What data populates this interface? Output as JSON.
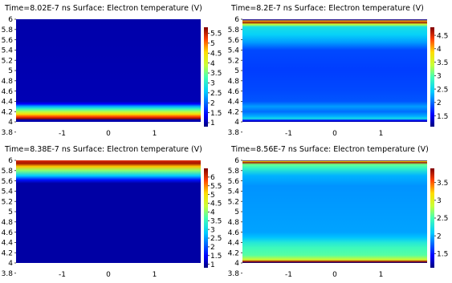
{
  "chart_data": [
    {
      "type": "heatmap",
      "title": "Time=8.02E-7 ns  Surface: Electron temperature (V)",
      "xlim": [
        -2,
        2
      ],
      "ylim": [
        3.8,
        6
      ],
      "xticks": [
        "-1",
        "0",
        "1"
      ],
      "yticks": [
        "3.8",
        "4",
        "4.2",
        "4.4",
        "4.6",
        "4.8",
        "5",
        "5.2",
        "5.4",
        "5.6",
        "5.8",
        "6"
      ],
      "colorbar": {
        "min": 0.8,
        "max": 5.8,
        "ticks": [
          "1",
          "1.5",
          "2",
          "2.5",
          "3",
          "3.5",
          "4",
          "4.5",
          "5",
          "5.5"
        ]
      },
      "profile": [
        {
          "y": 4.0,
          "v": 1.0
        },
        {
          "y": 4.04,
          "v": 1.0
        },
        {
          "y": 4.06,
          "v": 5.7
        },
        {
          "y": 4.1,
          "v": 5.2
        },
        {
          "y": 4.15,
          "v": 4.5
        },
        {
          "y": 4.2,
          "v": 3.8
        },
        {
          "y": 4.25,
          "v": 3.2
        },
        {
          "y": 4.3,
          "v": 2.4
        },
        {
          "y": 4.35,
          "v": 1.4
        },
        {
          "y": 4.4,
          "v": 1.05
        },
        {
          "y": 6.0,
          "v": 1.0
        }
      ]
    },
    {
      "type": "heatmap",
      "title": "Time=8.2E-7 ns   Surface: Electron temperature (V)",
      "xlim": [
        -2,
        2
      ],
      "ylim": [
        3.8,
        6
      ],
      "xticks": [
        "-1",
        "0",
        "1"
      ],
      "yticks": [
        "3.8",
        "4",
        "4.2",
        "4.4",
        "4.6",
        "4.8",
        "5",
        "5.2",
        "5.4",
        "5.6",
        "5.8",
        "6"
      ],
      "colorbar": {
        "min": 1.1,
        "max": 4.8,
        "ticks": [
          "1.5",
          "2",
          "2.5",
          "3",
          "3.5",
          "4",
          "4.5"
        ]
      },
      "profile": [
        {
          "y": 4.0,
          "v": 1.2
        },
        {
          "y": 4.03,
          "v": 1.6
        },
        {
          "y": 4.06,
          "v": 2.6
        },
        {
          "y": 4.1,
          "v": 2.3
        },
        {
          "y": 4.2,
          "v": 2.0
        },
        {
          "y": 4.3,
          "v": 2.2
        },
        {
          "y": 4.4,
          "v": 1.9
        },
        {
          "y": 4.6,
          "v": 1.85
        },
        {
          "y": 5.0,
          "v": 1.8
        },
        {
          "y": 5.4,
          "v": 1.85
        },
        {
          "y": 5.55,
          "v": 2.2
        },
        {
          "y": 5.7,
          "v": 2.45
        },
        {
          "y": 5.85,
          "v": 2.6
        },
        {
          "y": 5.9,
          "v": 3.4
        },
        {
          "y": 5.94,
          "v": 4.7
        },
        {
          "y": 5.96,
          "v": 4.0
        },
        {
          "y": 6.0,
          "v": 1.3
        }
      ]
    },
    {
      "type": "heatmap",
      "title": "Time=8.38E-7 ns   Surface: Electron temperature (V)",
      "xlim": [
        -2,
        2
      ],
      "ylim": [
        3.8,
        6
      ],
      "xticks": [
        "-1",
        "0",
        "1"
      ],
      "yticks": [
        "3.8",
        "4",
        "4.2",
        "4.4",
        "4.6",
        "4.8",
        "5",
        "5.2",
        "5.4",
        "5.6",
        "5.8",
        "6"
      ],
      "colorbar": {
        "min": 0.8,
        "max": 6.5,
        "ticks": [
          "1",
          "1.5",
          "2",
          "2.5",
          "3",
          "3.5",
          "4",
          "4.5",
          "5",
          "5.5",
          "6"
        ]
      },
      "profile": [
        {
          "y": 4.0,
          "v": 1.0
        },
        {
          "y": 5.55,
          "v": 1.0
        },
        {
          "y": 5.62,
          "v": 1.6
        },
        {
          "y": 5.7,
          "v": 2.8
        },
        {
          "y": 5.8,
          "v": 4.0
        },
        {
          "y": 5.88,
          "v": 5.2
        },
        {
          "y": 5.94,
          "v": 6.3
        },
        {
          "y": 6.0,
          "v": 6.0
        }
      ]
    },
    {
      "type": "heatmap",
      "title": "Time=8.56E-7 ns   Surface: Electron temperature (V)",
      "xlim": [
        -2,
        2
      ],
      "ylim": [
        3.8,
        6
      ],
      "xticks": [
        "-1",
        "0",
        "1"
      ],
      "yticks": [
        "3.8",
        "4",
        "4.2",
        "4.4",
        "4.6",
        "4.8",
        "5",
        "5.2",
        "5.4",
        "5.6",
        "5.8",
        "6"
      ],
      "colorbar": {
        "min": 1.1,
        "max": 3.9,
        "ticks": [
          "1.5",
          "2",
          "2.5",
          "3",
          "3.5"
        ]
      },
      "profile": [
        {
          "y": 4.0,
          "v": 1.1
        },
        {
          "y": 4.03,
          "v": 3.8
        },
        {
          "y": 4.06,
          "v": 2.9
        },
        {
          "y": 4.15,
          "v": 2.55
        },
        {
          "y": 4.3,
          "v": 2.45
        },
        {
          "y": 4.4,
          "v": 2.3
        },
        {
          "y": 4.5,
          "v": 2.05
        },
        {
          "y": 4.6,
          "v": 1.95
        },
        {
          "y": 5.5,
          "v": 1.9
        },
        {
          "y": 5.7,
          "v": 2.0
        },
        {
          "y": 5.85,
          "v": 2.4
        },
        {
          "y": 5.92,
          "v": 2.6
        },
        {
          "y": 5.96,
          "v": 3.8
        },
        {
          "y": 5.98,
          "v": 3.2
        },
        {
          "y": 6.0,
          "v": 1.2
        }
      ]
    }
  ]
}
